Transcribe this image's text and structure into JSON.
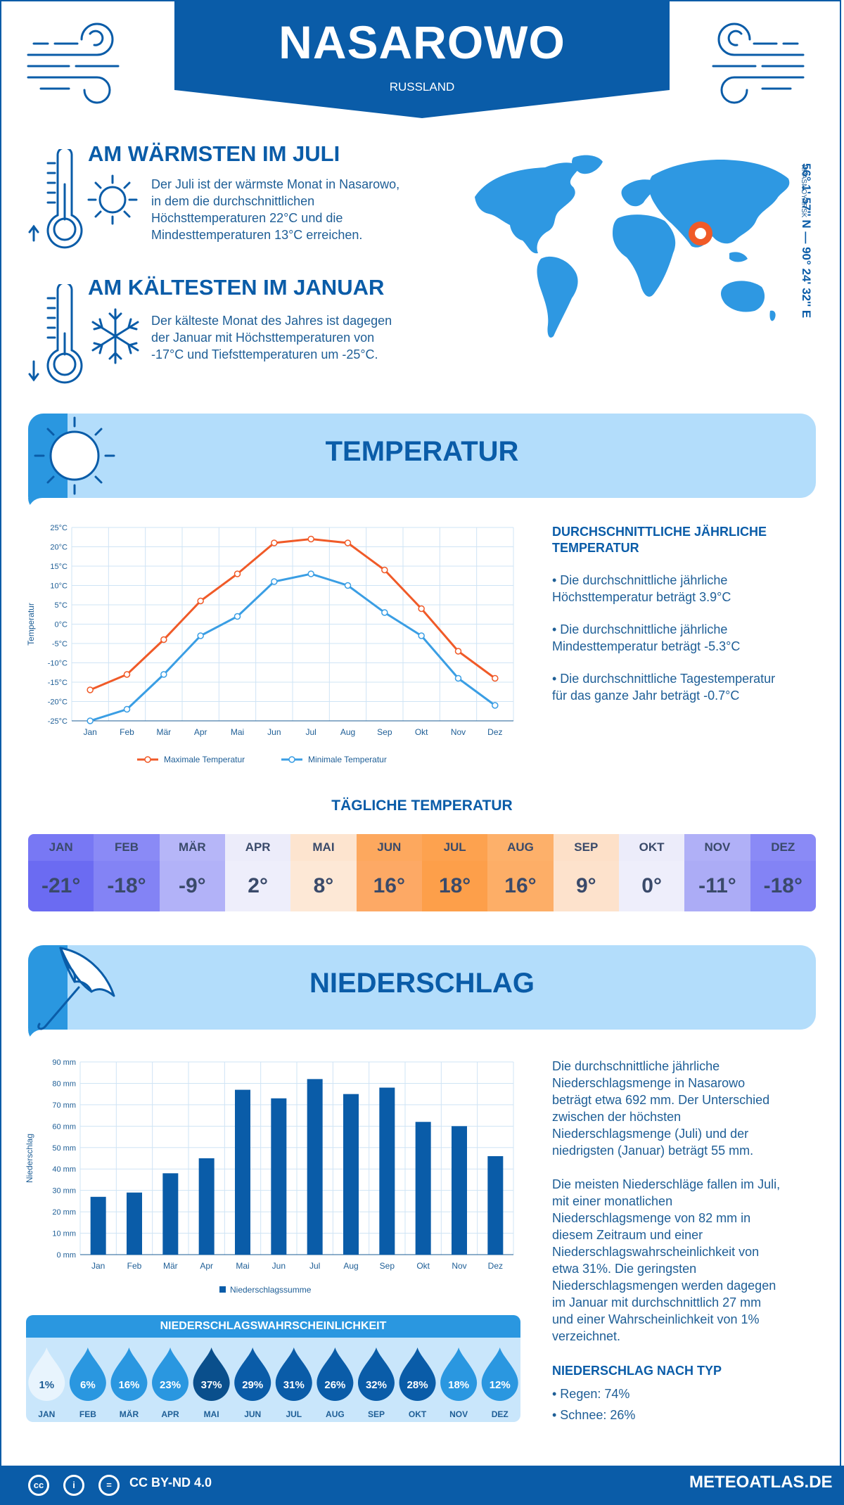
{
  "header": {
    "city": "NASAROWO",
    "country": "RUSSLAND"
  },
  "coords": {
    "text": "56° 1' 57'' N — 90° 24' 32'' E",
    "region": "KRASNOYARSK"
  },
  "warmest": {
    "title": "AM WÄRMSTEN IM JULI",
    "text": [
      "Der Juli ist der wärmste Monat in Nasarowo,",
      "in dem die durchschnittlichen",
      "Höchsttemperaturen 22°C und die",
      "Mindesttemperaturen 13°C erreichen."
    ]
  },
  "coldest": {
    "title": "AM KÄLTESTEN IM JANUAR",
    "text": [
      "Der kälteste Monat des Jahres ist dagegen",
      "der Januar mit Höchsttemperaturen von",
      "-17°C und Tiefsttemperaturen um -25°C."
    ]
  },
  "temp_section": {
    "title": "TEMPERATUR",
    "side_title": [
      "DURCHSCHNITTLICHE JÄHRLICHE",
      "TEMPERATUR"
    ],
    "bullets": [
      [
        "• Die durchschnittliche jährliche",
        "Höchsttemperatur beträgt 3.9°C"
      ],
      [
        "• Die durchschnittliche jährliche",
        "Mindesttemperatur beträgt -5.3°C"
      ],
      [
        "• Die durchschnittliche Tagestemperatur",
        "für das ganze Jahr beträgt -0.7°C"
      ]
    ]
  },
  "daily": {
    "title": "TÄGLICHE TEMPERATUR",
    "months": [
      "JAN",
      "FEB",
      "MÄR",
      "APR",
      "MAI",
      "JUN",
      "JUL",
      "AUG",
      "SEP",
      "OKT",
      "NOV",
      "DEZ"
    ],
    "values": [
      "-21°",
      "-18°",
      "-9°",
      "2°",
      "8°",
      "16°",
      "18°",
      "16°",
      "9°",
      "0°",
      "-11°",
      "-18°"
    ],
    "head_colors": [
      "#7878f4",
      "#8a8af6",
      "#b6b6f8",
      "#ececfa",
      "#fde4cf",
      "#fda85e",
      "#fda24f",
      "#fdb06a",
      "#fde0c8",
      "#ececfa",
      "#b0b0f7",
      "#8a8af6"
    ],
    "val_colors": [
      "#6b6bf2",
      "#8383f5",
      "#b2b2f8",
      "#eeeefb",
      "#fde8d6",
      "#fda965",
      "#fd9f4a",
      "#fdae67",
      "#fde2cc",
      "#eeeefb",
      "#acacf6",
      "#8383f5"
    ]
  },
  "precip_section": {
    "title": "NIEDERSCHLAG",
    "paragraph1": [
      "Die durchschnittliche jährliche",
      "Niederschlagsmenge in Nasarowo",
      "beträgt etwa 692 mm. Der Unterschied",
      "zwischen der höchsten",
      "Niederschlagsmenge (Juli) und der",
      "niedrigsten (Januar) beträgt 55 mm."
    ],
    "paragraph2": [
      "Die meisten Niederschläge fallen im Juli,",
      "mit einer monatlichen",
      "Niederschlagsmenge von 82 mm in",
      "diesem Zeitraum und einer",
      "Niederschlagswahrscheinlichkeit von",
      "etwa 31%. Die geringsten",
      "Niederschlagsmengen werden dagegen",
      "im Januar mit durchschnittlich 27 mm",
      "und einer Wahrscheinlichkeit von 1%",
      "verzeichnet."
    ],
    "type_title": "NIEDERSCHLAG NACH TYP",
    "types": [
      "• Regen: 74%",
      "• Schnee: 26%"
    ]
  },
  "probability": {
    "title": "NIEDERSCHLAGSWAHRSCHEINLICHKEIT",
    "months": [
      "JAN",
      "FEB",
      "MÄR",
      "APR",
      "MAI",
      "JUN",
      "JUL",
      "AUG",
      "SEP",
      "OKT",
      "NOV",
      "DEZ"
    ],
    "values": [
      "1%",
      "6%",
      "16%",
      "23%",
      "37%",
      "29%",
      "31%",
      "26%",
      "32%",
      "28%",
      "18%",
      "12%"
    ],
    "colors": [
      "#e8f4fd",
      "#2a97e0",
      "#2a97e0",
      "#2a97e0",
      "#0a4f8c",
      "#0a5ca8",
      "#0a5ca8",
      "#0a5ca8",
      "#0a5ca8",
      "#0a5ca8",
      "#2a97e0",
      "#2a97e0"
    ]
  },
  "footer": {
    "license": "CC BY-ND 4.0",
    "site": "METEOATLAS.DE",
    "cc_labels": [
      "cc",
      "i",
      "="
    ]
  },
  "chart_data": [
    {
      "type": "line",
      "categories": [
        "Jan",
        "Feb",
        "Mär",
        "Apr",
        "Mai",
        "Jun",
        "Jul",
        "Aug",
        "Sep",
        "Okt",
        "Nov",
        "Dez"
      ],
      "series": [
        {
          "name": "Maximale Temperatur",
          "values": [
            -17,
            -13,
            -4,
            6,
            13,
            21,
            22,
            21,
            14,
            4,
            -7,
            -14
          ],
          "color": "#f05a28"
        },
        {
          "name": "Minimale Temperatur",
          "values": [
            -25,
            -22,
            -13,
            -3,
            2,
            11,
            13,
            10,
            3,
            -3,
            -14,
            -21
          ],
          "color": "#3a9ee4"
        }
      ],
      "ylabel": "Temperatur",
      "ylim": [
        -25,
        25
      ],
      "yticks": [
        "25°C",
        "20°C",
        "15°C",
        "10°C",
        "5°C",
        "0°C",
        "-5°C",
        "-10°C",
        "-15°C",
        "-20°C",
        "-25°C"
      ],
      "grid": true,
      "legend": "bottom"
    },
    {
      "type": "bar",
      "categories": [
        "Jan",
        "Feb",
        "Mär",
        "Apr",
        "Mai",
        "Jun",
        "Jul",
        "Aug",
        "Sep",
        "Okt",
        "Nov",
        "Dez"
      ],
      "series": [
        {
          "name": "Niederschlagssumme",
          "values": [
            27,
            29,
            38,
            45,
            77,
            73,
            82,
            75,
            78,
            62,
            60,
            46
          ],
          "color": "#0a5ca8"
        }
      ],
      "ylabel": "Niederschlag",
      "ylim": [
        0,
        90
      ],
      "yticks": [
        "90 mm",
        "80 mm",
        "70 mm",
        "60 mm",
        "50 mm",
        "40 mm",
        "30 mm",
        "20 mm",
        "10 mm",
        "0 mm"
      ],
      "grid": true,
      "legend": "bottom"
    }
  ]
}
